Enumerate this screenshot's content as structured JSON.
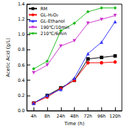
{
  "chart_data": {
    "type": "line",
    "x_label": "Time (h)",
    "y_label": "Acetic Acid (g/L)",
    "categories": [
      "4h",
      "8h",
      "24h",
      "48h",
      "72h",
      "96h",
      "120h"
    ],
    "ylim": [
      0,
      1.4
    ],
    "yticks": [
      {
        "value": 0,
        "label": "0.0"
      },
      0.2,
      0.4,
      0.6,
      0.8,
      {
        "value": 1,
        "label": "1.0"
      },
      1.2,
      1.4
    ],
    "legend": "top-left",
    "series": [
      {
        "name": "RM",
        "color": "#000000",
        "marker": "square",
        "values": [
          0.1,
          0.2,
          0.3,
          0.4,
          0.68,
          0.7,
          0.72
        ]
      },
      {
        "name": "GL-H₂O₂",
        "color": "#ff0000",
        "marker": "circle",
        "values": [
          0.1,
          0.18,
          0.29,
          0.4,
          0.63,
          0.63,
          0.64
        ]
      },
      {
        "name": "GL-Ethanol",
        "color": "#3333ff",
        "marker": "triangle",
        "values": [
          0.1,
          0.2,
          0.28,
          0.43,
          0.75,
          0.9,
          1.17
        ]
      },
      {
        "name": "190℃/10min",
        "color": "#cc33cc",
        "marker": "triangle_down",
        "values": [
          0.5,
          0.6,
          0.85,
          0.92,
          1.15,
          1.2,
          1.25
        ]
      },
      {
        "name": "210℃/6min",
        "color": "#22bb22",
        "marker": "diamond",
        "values": [
          0.55,
          0.65,
          1.05,
          1.15,
          1.3,
          1.35,
          1.35
        ]
      }
    ]
  }
}
